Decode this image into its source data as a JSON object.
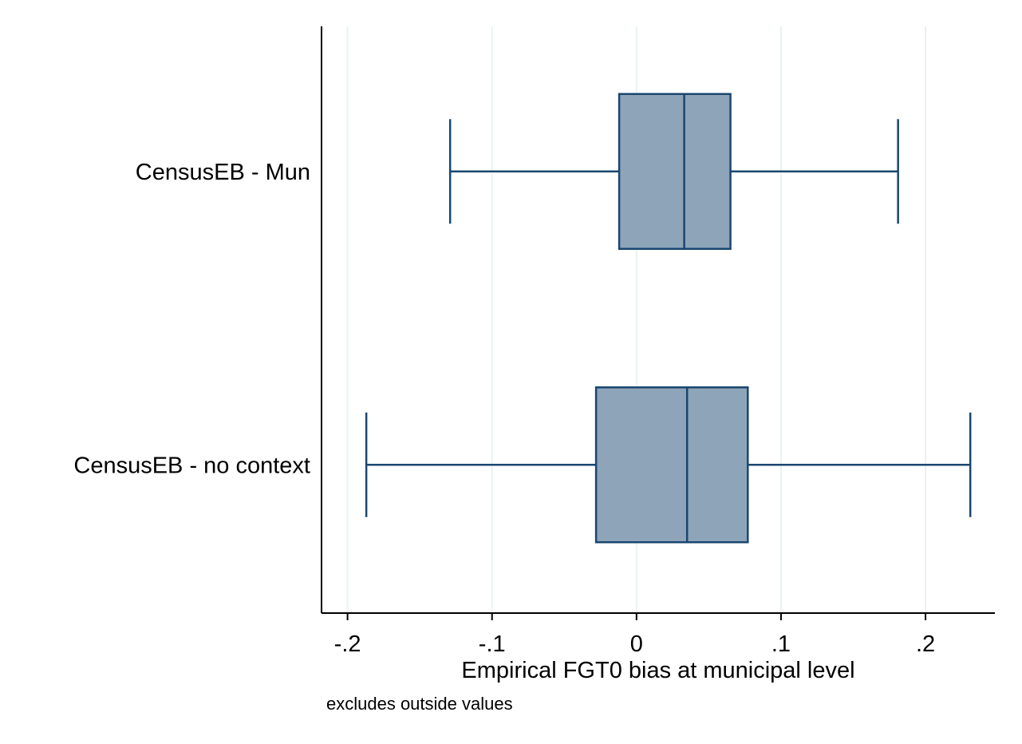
{
  "chart_data": {
    "type": "box",
    "orientation": "horizontal",
    "title": "",
    "xlabel": "Empirical FGT0 bias at municipal level",
    "ylabel": "",
    "note": "excludes outside values",
    "xlim": [
      -0.218,
      0.248
    ],
    "xticks": [
      -0.2,
      -0.1,
      0,
      0.1,
      0.2
    ],
    "xtick_labels": [
      "-.2",
      "-.1",
      "0",
      ".1",
      ".2"
    ],
    "grid": "vertical",
    "legend": "none",
    "categories": [
      "CensusEB - Mun",
      "CensusEB - no context"
    ],
    "boxes": [
      {
        "label": "CensusEB - Mun",
        "whisker_low": -0.129,
        "q1": -0.012,
        "median": 0.033,
        "q3": 0.065,
        "whisker_high": 0.181
      },
      {
        "label": "CensusEB - no context",
        "whisker_low": -0.187,
        "q1": -0.028,
        "median": 0.035,
        "q3": 0.077,
        "whisker_high": 0.231
      }
    ],
    "colors": {
      "box_fill": "#8ea4b9",
      "box_stroke": "#1a476f",
      "grid": "#eaf2f3",
      "axis": "#000000"
    }
  }
}
